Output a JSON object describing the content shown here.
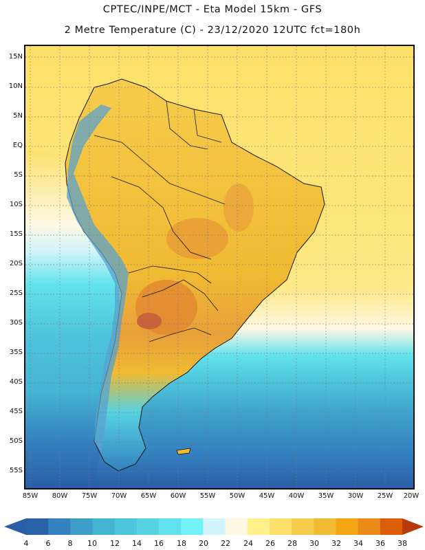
{
  "header": {
    "title_line1": "CPTEC/INPE/MCT  -  Eta Model 15km - GFS",
    "title_line2": "2 Metre Temperature (C) - 23/12/2020 12UTC fct=180h"
  },
  "map": {
    "lat_ticks": [
      "15N",
      "10N",
      "5N",
      "EQ",
      "5S",
      "10S",
      "15S",
      "20S",
      "25S",
      "30S",
      "35S",
      "40S",
      "45S",
      "50S",
      "55S"
    ],
    "lon_ticks": [
      "85W",
      "80W",
      "75W",
      "70W",
      "65W",
      "60W",
      "55W",
      "50W",
      "45W",
      "40W",
      "35W",
      "30W",
      "25W",
      "20W"
    ],
    "grid": "dotted"
  },
  "colorbar": {
    "labels": [
      "4",
      "6",
      "8",
      "10",
      "12",
      "14",
      "16",
      "18",
      "20",
      "22",
      "24",
      "26",
      "28",
      "30",
      "32",
      "34",
      "36",
      "38"
    ],
    "colors": [
      "#2a62a8",
      "#3481bf",
      "#3e9ec9",
      "#45b3d2",
      "#4ec4dc",
      "#56d2e2",
      "#62e2ec",
      "#72f2f6",
      "#d2f4fa",
      "#fff8e2",
      "#fff08c",
      "#fde06a",
      "#f6cc4c",
      "#f0ba32",
      "#f3a612",
      "#ea8a18",
      "#dd5e0a",
      "#c43e06"
    ],
    "below_color": "#2a5ea6",
    "above_color": "#b63a08"
  },
  "colors": {
    "land_warm": "#f5c542",
    "land_hot": "#e49a2a",
    "ocean_tropic": "#fde67a",
    "ocean_cold": "#2b66ad",
    "andes": "#5aa2cc"
  }
}
